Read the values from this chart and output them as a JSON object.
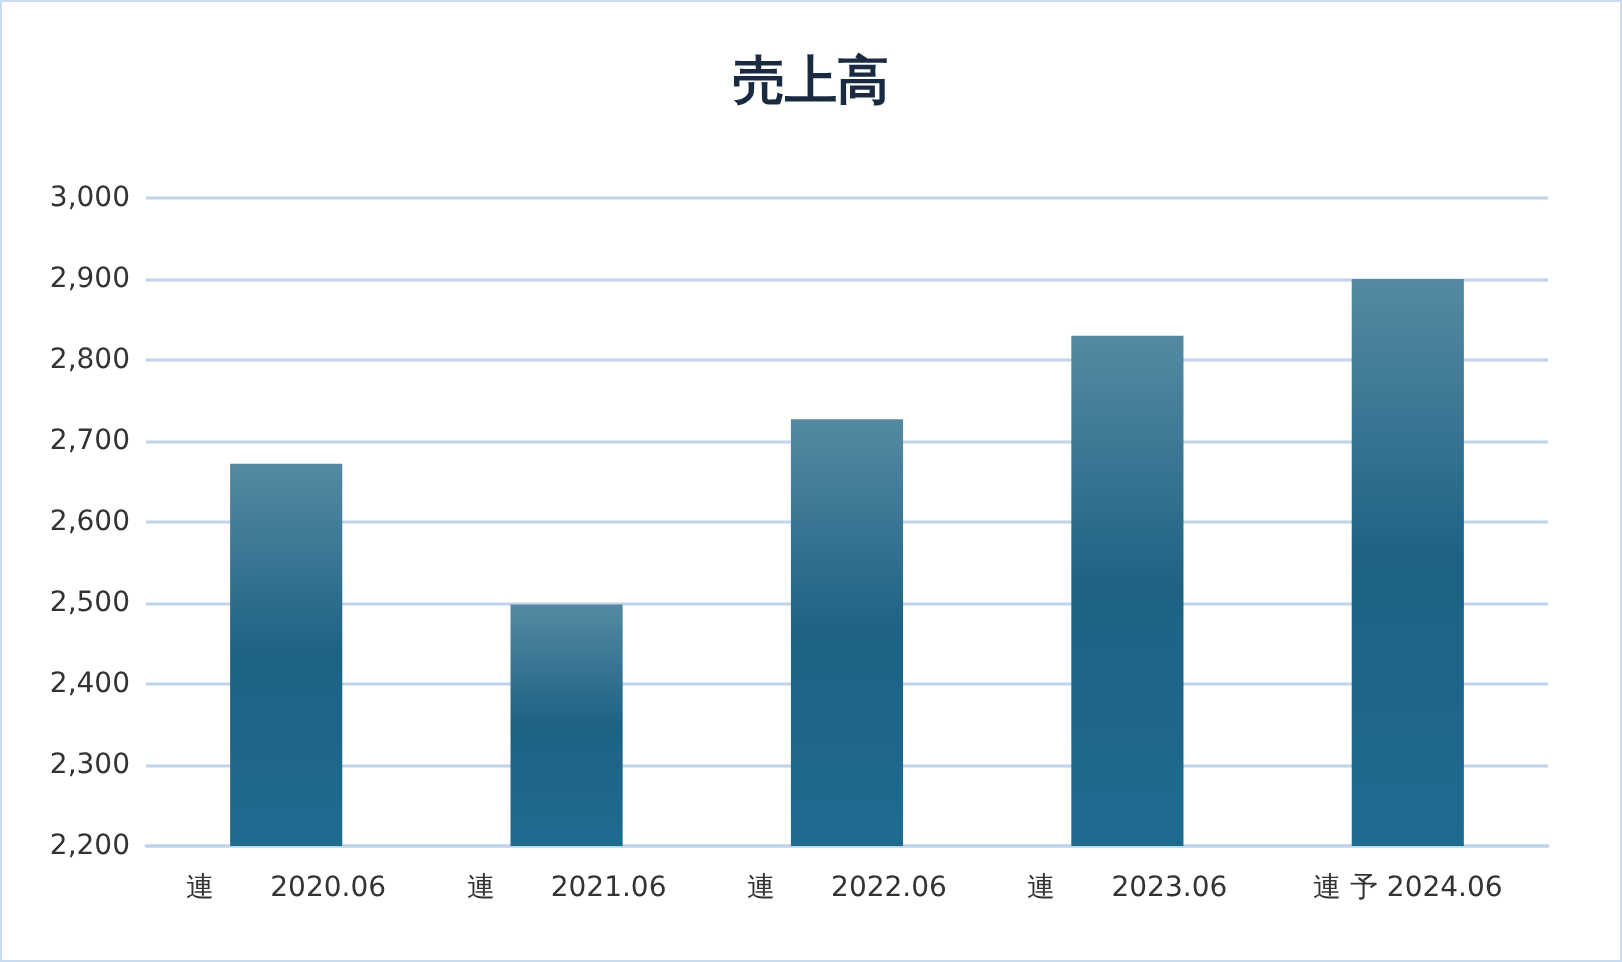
{
  "chart_data": {
    "type": "bar",
    "title": "売上高",
    "categories": [
      "連　　2020.06",
      "連　　2021.06",
      "連　　2022.06",
      "連　　2023.06",
      "連 予 2024.06"
    ],
    "values": [
      2672,
      2498,
      2727,
      2830,
      2900
    ],
    "color": "#1d6283",
    "ylim": [
      2200,
      3000
    ],
    "yticks": [
      {
        "value": 2200,
        "label": "2,200"
      },
      {
        "value": 2300,
        "label": "2,300"
      },
      {
        "value": 2400,
        "label": "2,400"
      },
      {
        "value": 2500,
        "label": "2,500"
      },
      {
        "value": 2600,
        "label": "2,600"
      },
      {
        "value": 2700,
        "label": "2,700"
      },
      {
        "value": 2800,
        "label": "2,800"
      },
      {
        "value": 2900,
        "label": "2,900"
      },
      {
        "value": 3000,
        "label": "3,000"
      }
    ],
    "grid": "y"
  }
}
